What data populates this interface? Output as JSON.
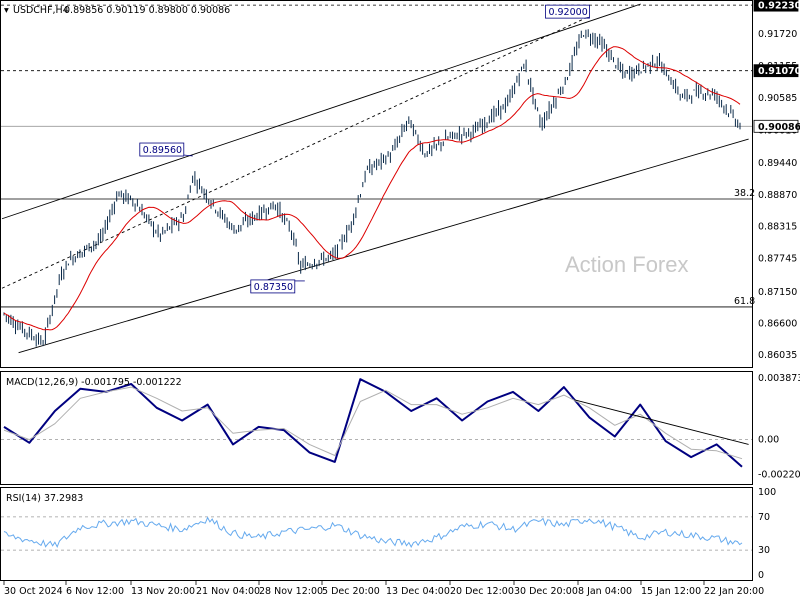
{
  "header": {
    "symbol": "USDCHF,H4",
    "ohlc": "0.89856 0.90119 0.89800 0.90086"
  },
  "watermark": "Action Forex",
  "chart_data": [
    {
      "type": "candlestick",
      "symbol": "USDCHF",
      "timeframe": "H4",
      "ylim": [
        0.8588,
        0.9225
      ],
      "y_ticks": [
        "0.86035",
        "0.86600",
        "0.87150",
        "0.87745",
        "0.88315",
        "0.88870",
        "0.89440",
        "0.90010",
        "0.90585",
        "0.91155",
        "0.91720"
      ],
      "price_tags": [
        {
          "label": "0.92230",
          "value": 0.9223,
          "style": "dark"
        },
        {
          "label": "0.91070",
          "value": 0.9107,
          "style": "dark"
        },
        {
          "label": "0.90086",
          "value": 0.90086,
          "style": "current"
        }
      ],
      "swing_labels": [
        {
          "label": "0.92000",
          "value": 0.92,
          "x": "2025-01-08 08:00"
        },
        {
          "label": "0.89560",
          "value": 0.8956,
          "x": "2024-11-22 00:00"
        },
        {
          "label": "0.87350",
          "value": 0.8735,
          "x": "2024-12-05 12:00"
        }
      ],
      "fibonacci": [
        {
          "label": "38.2",
          "value": 0.888
        },
        {
          "label": "61.8",
          "value": 0.8689
        }
      ],
      "horizontal_levels": [
        0.9223,
        0.9107,
        0.90086
      ],
      "channel": {
        "upper": [
          {
            "x": "2024-10-30 00:00",
            "y": 0.8845
          },
          {
            "x": "2025-01-15 00:00",
            "y": 0.9225
          }
        ],
        "lower": [
          {
            "x": "2024-11-01 00:00",
            "y": 0.8608
          },
          {
            "x": "2025-01-28 00:00",
            "y": 0.8986
          }
        ],
        "middle": [
          {
            "x": "2024-10-30 00:00",
            "y": 0.8722
          },
          {
            "x": "2025-01-08 08:00",
            "y": 0.92
          }
        ]
      },
      "moving_average": {
        "color": "#dd0000"
      },
      "candles_summary": [
        {
          "t": "2024-10-30",
          "c": 0.868
        },
        {
          "t": "2024-11-01",
          "c": 0.8655
        },
        {
          "t": "2024-11-04",
          "c": 0.8625
        },
        {
          "t": "2024-11-06",
          "c": 0.874
        },
        {
          "t": "2024-11-07",
          "c": 0.877
        },
        {
          "t": "2024-11-11",
          "c": 0.881
        },
        {
          "t": "2024-11-13",
          "c": 0.889
        },
        {
          "t": "2024-11-15",
          "c": 0.8875
        },
        {
          "t": "2024-11-18",
          "c": 0.8815
        },
        {
          "t": "2024-11-21",
          "c": 0.885
        },
        {
          "t": "2024-11-22",
          "c": 0.892
        },
        {
          "t": "2024-11-25",
          "c": 0.886
        },
        {
          "t": "2024-11-27",
          "c": 0.8825
        },
        {
          "t": "2024-11-29",
          "c": 0.8845
        },
        {
          "t": "2024-12-02",
          "c": 0.887
        },
        {
          "t": "2024-12-04",
          "c": 0.882
        },
        {
          "t": "2024-12-05",
          "c": 0.876
        },
        {
          "t": "2024-12-09",
          "c": 0.878
        },
        {
          "t": "2024-12-11",
          "c": 0.883
        },
        {
          "t": "2024-12-13",
          "c": 0.893
        },
        {
          "t": "2024-12-16",
          "c": 0.896
        },
        {
          "t": "2024-12-18",
          "c": 0.902
        },
        {
          "t": "2024-12-20",
          "c": 0.896
        },
        {
          "t": "2024-12-23",
          "c": 0.899
        },
        {
          "t": "2024-12-26",
          "c": 0.9
        },
        {
          "t": "2024-12-30",
          "c": 0.905
        },
        {
          "t": "2025-01-01",
          "c": 0.912
        },
        {
          "t": "2025-01-03",
          "c": 0.901
        },
        {
          "t": "2025-01-06",
          "c": 0.909
        },
        {
          "t": "2025-01-08",
          "c": 0.9175
        },
        {
          "t": "2025-01-10",
          "c": 0.916
        },
        {
          "t": "2025-01-13",
          "c": 0.91
        },
        {
          "t": "2025-01-15",
          "c": 0.911
        },
        {
          "t": "2025-01-17",
          "c": 0.9125
        },
        {
          "t": "2025-01-20",
          "c": 0.906
        },
        {
          "t": "2025-01-22",
          "c": 0.907
        },
        {
          "t": "2025-01-24",
          "c": 0.9065
        },
        {
          "t": "2025-01-27",
          "c": 0.9009
        }
      ],
      "x_ticks": [
        "30 Oct 2024",
        "6 Nov 12:00",
        "13 Nov 20:00",
        "21 Nov 04:00",
        "28 Nov 12:00",
        "5 Dec 20:00",
        "13 Dec 04:00",
        "20 Dec 12:00",
        "30 Dec 20:00",
        "8 Jan 04:00",
        "15 Jan 12:00",
        "22 Jan 20:00"
      ]
    },
    {
      "type": "line",
      "title": "MACD(12,26,9) -0.001795 -0.001222",
      "ylim": [
        -0.0026,
        0.004
      ],
      "y_ticks": [
        "0.003873",
        "0.00",
        "-0.002201"
      ],
      "zero_tag": "0.00",
      "series": [
        {
          "name": "MACD",
          "color": "#000080",
          "values": [
            0.0008,
            -0.0002,
            0.0018,
            0.0032,
            0.003,
            0.0035,
            0.002,
            0.0012,
            0.0022,
            -0.0003,
            0.0008,
            0.0006,
            -0.0008,
            -0.0014,
            0.0038,
            0.003,
            0.0018,
            0.0026,
            0.0012,
            0.0024,
            0.003,
            0.0018,
            0.0033,
            0.0014,
            0.0002,
            0.0022,
            -0.0001,
            -0.0011,
            -0.0003,
            -0.0017
          ]
        },
        {
          "name": "Signal",
          "color": "#b0b0b0",
          "values": [
            0.0006,
            0.0,
            0.001,
            0.0026,
            0.003,
            0.0033,
            0.0026,
            0.0018,
            0.002,
            0.0004,
            0.0006,
            0.0007,
            -0.0003,
            -0.001,
            0.0024,
            0.0031,
            0.0022,
            0.0022,
            0.0016,
            0.002,
            0.0026,
            0.0022,
            0.0028,
            0.002,
            0.0009,
            0.0016,
            0.0004,
            -0.0006,
            -0.0007,
            -0.0012
          ]
        }
      ],
      "trendline": [
        {
          "x": "2025-01-07",
          "y": 0.0025
        },
        {
          "x": "2025-01-28",
          "y": -0.0003
        }
      ]
    },
    {
      "type": "line",
      "title": "RSI(14) 37.2983",
      "ylim": [
        0,
        100
      ],
      "y_ticks": [
        "100",
        "70",
        "30",
        "0"
      ],
      "levels": [
        70,
        30
      ],
      "series": [
        {
          "name": "RSI",
          "color": "#66aaee",
          "values": [
            48,
            42,
            35,
            58,
            62,
            65,
            60,
            55,
            68,
            50,
            45,
            52,
            55,
            60,
            48,
            40,
            38,
            45,
            58,
            62,
            55,
            65,
            60,
            68,
            58,
            45,
            52,
            48,
            44,
            37
          ]
        }
      ]
    }
  ]
}
